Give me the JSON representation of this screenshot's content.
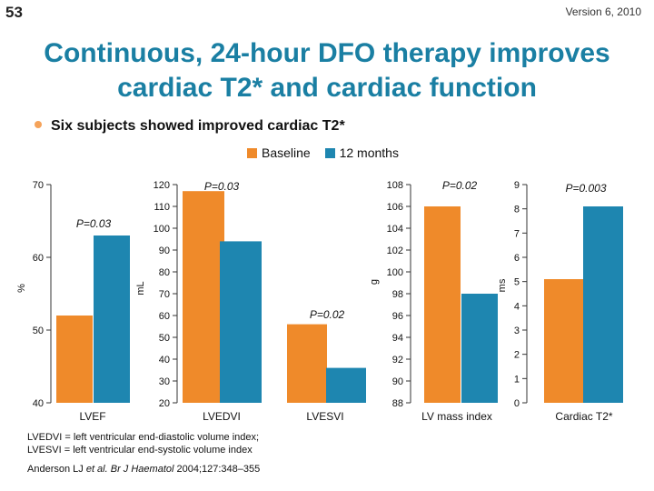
{
  "slide_number": "53",
  "version": "Version 6, 2010",
  "title_line1": "Continuous, 24-hour DFO therapy improves",
  "title_line2": "cardiac T2* and cardiac function",
  "bullet": "Six subjects showed improved cardiac T2*",
  "colors": {
    "baseline": "#ef8a2a",
    "months12": "#1e86b0",
    "title": "#1a7fa3"
  },
  "chart_data": {
    "type": "bar",
    "legend": [
      {
        "name": "Baseline",
        "color": "#ef8a2a"
      },
      {
        "name": "12 months",
        "color": "#1e86b0"
      }
    ],
    "categories": [
      "LVEF",
      "LVEDVI",
      "LVESVI",
      "LV mass index",
      "Cardiac T2*"
    ],
    "series": [
      {
        "name": "Baseline",
        "values": [
          52,
          117,
          56,
          106,
          5.1
        ]
      },
      {
        "name": "12 months",
        "values": [
          63,
          94,
          36,
          98,
          8.1
        ]
      }
    ],
    "axes": [
      {
        "id": "pct",
        "label": "%",
        "ylim": [
          40,
          70
        ],
        "ticks": [
          40,
          50,
          60,
          70
        ]
      },
      {
        "id": "ml",
        "label": "mL",
        "ylim": [
          20,
          120
        ],
        "ticks": [
          20,
          30,
          40,
          50,
          60,
          70,
          80,
          90,
          100,
          110,
          120
        ]
      },
      {
        "id": "g",
        "label": "g",
        "ylim": [
          88,
          108
        ],
        "ticks": [
          88,
          90,
          92,
          94,
          96,
          98,
          100,
          102,
          104,
          106,
          108
        ]
      },
      {
        "id": "ms",
        "label": "ms",
        "ylim": [
          0,
          9
        ],
        "ticks": [
          0,
          1,
          2,
          3,
          4,
          5,
          6,
          7,
          8,
          9
        ]
      }
    ],
    "p_values": [
      {
        "category": "LVEF",
        "text": "P=0.03"
      },
      {
        "category": "LVEDVI",
        "text": "P=0.03"
      },
      {
        "category": "LVESVI",
        "text": "P=0.02"
      },
      {
        "category": "LV mass index",
        "text": "P=0.02"
      },
      {
        "category": "Cardiac T2*",
        "text": "P=0.003"
      }
    ]
  },
  "footnote_line1": "LVEDVI = left ventricular end-diastolic volume index;",
  "footnote_line2": "LVESVI = left ventricular end-systolic volume index",
  "citation": {
    "authors": "Anderson LJ ",
    "etal": "et al.",
    "journal": " Br J Haematol",
    "details": " 2004;127:348–355"
  }
}
